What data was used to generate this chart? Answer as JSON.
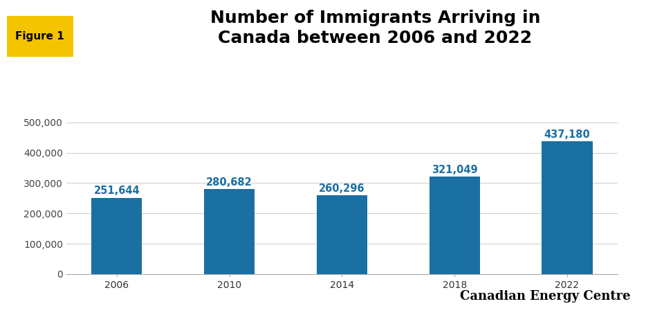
{
  "title_line1": "Number of Immigrants Arriving in",
  "title_line2": "Canada between 2006 and 2022",
  "title_fontsize": 18,
  "title_fontweight": "bold",
  "categories": [
    "2006",
    "2010",
    "2014",
    "2018",
    "2022"
  ],
  "values": [
    251644,
    280682,
    260296,
    321049,
    437180
  ],
  "bar_color": "#1a6fa3",
  "label_color": "#1a6fa3",
  "label_fontsize": 10.5,
  "label_fontweight": "bold",
  "ytick_labels": [
    "0",
    "100,000",
    "200,000",
    "300,000",
    "400,000",
    "500,000"
  ],
  "ytick_values": [
    0,
    100000,
    200000,
    300000,
    400000,
    500000
  ],
  "ylim": [
    0,
    540000
  ],
  "grid_color": "#cccccc",
  "background_color": "#ffffff",
  "figure_label": "Figure 1",
  "figure_label_bg": "#f5c400",
  "figure_label_fontsize": 11,
  "figure_label_fontweight": "bold",
  "watermark": "Canadian Energy Centre",
  "watermark_fontsize": 13,
  "watermark_fontweight": "bold",
  "xtick_fontsize": 10,
  "ytick_fontsize": 10,
  "bar_width": 0.45
}
